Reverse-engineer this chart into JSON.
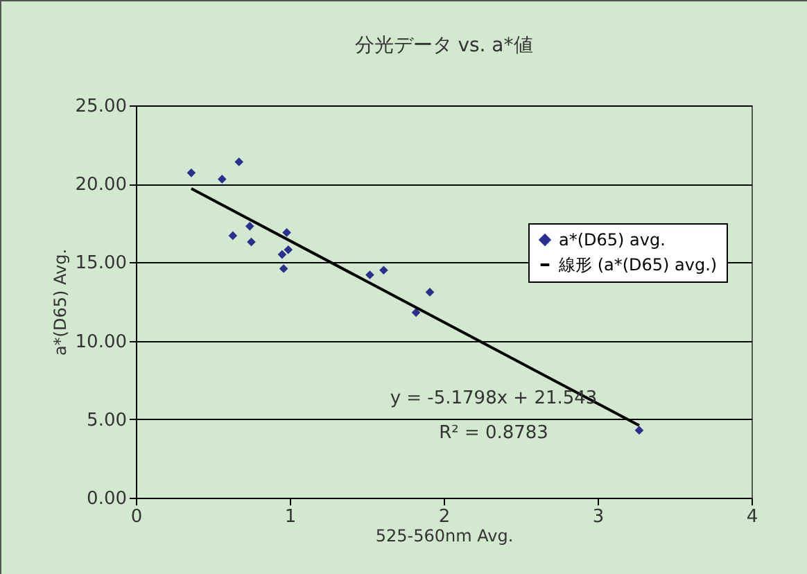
{
  "chart_data": {
    "type": "scatter",
    "title": "分光データ vs. a*値",
    "xlabel": "525-560nm Avg.",
    "ylabel": "a*(D65) Avg.",
    "xlim": [
      0,
      4
    ],
    "xticks": [
      0,
      1,
      2,
      3,
      4
    ],
    "ylim": [
      0,
      25
    ],
    "yticks": [
      {
        "value": 0,
        "label": "0.00"
      },
      {
        "value": 5,
        "label": "5.00"
      },
      {
        "value": 10,
        "label": "10.00"
      },
      {
        "value": 15,
        "label": "15.00"
      },
      {
        "value": 20,
        "label": "20.00"
      },
      {
        "value": 25,
        "label": "25.00"
      }
    ],
    "grid": "y",
    "legend": "right",
    "marker": "diamond",
    "series": [
      {
        "name": "a*(D65) avg.",
        "color": "#2b2f8f",
        "x": [
          0.36,
          0.56,
          0.67,
          0.63,
          0.74,
          0.75,
          0.98,
          0.95,
          0.99,
          0.96,
          1.52,
          1.61,
          1.82,
          1.91,
          3.27
        ],
        "values": [
          20.7,
          20.3,
          21.4,
          16.7,
          17.3,
          16.3,
          16.9,
          15.5,
          15.8,
          14.6,
          14.2,
          14.5,
          11.8,
          13.1,
          4.3
        ]
      },
      {
        "name": "線形 (a*(D65) avg.)",
        "type": "line",
        "marker": "none",
        "color": "#000000",
        "x": [
          0.36,
          3.27
        ],
        "values": [
          19.7,
          4.6
        ]
      }
    ],
    "annotations": [
      "y = -5.1798x + 21.543",
      "R² = 0.8783"
    ]
  }
}
